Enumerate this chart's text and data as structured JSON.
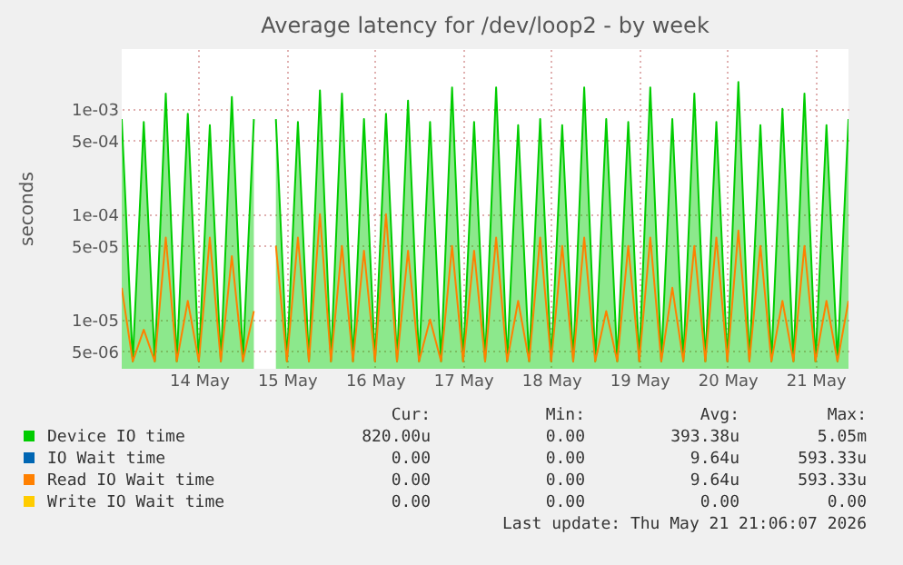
{
  "chart_data": {
    "type": "area",
    "title": "Average latency for /dev/loop2 - by week",
    "ylabel": "seconds",
    "log": true,
    "grid": true,
    "legend": "bottom",
    "xlim": [
      "2026-05-13T03:00",
      "2026-05-21T09:00"
    ],
    "xticks": [
      {
        "value": "2026-05-14",
        "label": "14 May"
      },
      {
        "value": "2026-05-15",
        "label": "15 May"
      },
      {
        "value": "2026-05-16",
        "label": "16 May"
      },
      {
        "value": "2026-05-17",
        "label": "17 May"
      },
      {
        "value": "2026-05-18",
        "label": "18 May"
      },
      {
        "value": "2026-05-19",
        "label": "19 May"
      },
      {
        "value": "2026-05-20",
        "label": "20 May"
      },
      {
        "value": "2026-05-21",
        "label": "21 May"
      }
    ],
    "ylim": [
      3.4e-06,
      0.0037
    ],
    "yticks": [
      {
        "value": 5e-06,
        "label": "5e-06"
      },
      {
        "value": 1e-05,
        "label": "1e-05"
      },
      {
        "value": 5e-05,
        "label": "5e-05"
      },
      {
        "value": 0.0001,
        "label": "1e-04"
      },
      {
        "value": 0.0005,
        "label": "5e-04"
      },
      {
        "value": 0.001,
        "label": "1e-03"
      }
    ],
    "x": [
      "2026-05-13T03:00",
      "2026-05-13T06:00",
      "2026-05-13T09:00",
      "2026-05-13T12:00",
      "2026-05-13T15:00",
      "2026-05-13T18:00",
      "2026-05-13T21:00",
      "2026-05-14T00:00",
      "2026-05-14T03:00",
      "2026-05-14T06:00",
      "2026-05-14T09:00",
      "2026-05-14T12:00",
      "2026-05-14T15:00",
      "2026-05-14T18:00",
      "2026-05-14T21:00",
      "2026-05-15T00:00",
      "2026-05-15T03:00",
      "2026-05-15T06:00",
      "2026-05-15T09:00",
      "2026-05-15T12:00",
      "2026-05-15T15:00",
      "2026-05-15T18:00",
      "2026-05-15T21:00",
      "2026-05-16T00:00",
      "2026-05-16T03:00",
      "2026-05-16T06:00",
      "2026-05-16T09:00",
      "2026-05-16T12:00",
      "2026-05-16T15:00",
      "2026-05-16T18:00",
      "2026-05-16T21:00",
      "2026-05-17T00:00",
      "2026-05-17T03:00",
      "2026-05-17T06:00",
      "2026-05-17T09:00",
      "2026-05-17T12:00",
      "2026-05-17T15:00",
      "2026-05-17T18:00",
      "2026-05-17T21:00",
      "2026-05-18T00:00",
      "2026-05-18T03:00",
      "2026-05-18T06:00",
      "2026-05-18T09:00",
      "2026-05-18T12:00",
      "2026-05-18T15:00",
      "2026-05-18T18:00",
      "2026-05-18T21:00",
      "2026-05-19T00:00",
      "2026-05-19T03:00",
      "2026-05-19T06:00",
      "2026-05-19T09:00",
      "2026-05-19T12:00",
      "2026-05-19T15:00",
      "2026-05-19T18:00",
      "2026-05-19T21:00",
      "2026-05-20T00:00",
      "2026-05-20T03:00",
      "2026-05-20T06:00",
      "2026-05-20T09:00",
      "2026-05-20T12:00",
      "2026-05-20T15:00",
      "2026-05-20T18:00",
      "2026-05-20T21:00",
      "2026-05-21T00:00",
      "2026-05-21T03:00",
      "2026-05-21T06:00",
      "2026-05-21T09:00"
    ],
    "series": [
      {
        "name": "Device IO time",
        "color": "#00cc00",
        "values": [
          0.0008,
          4e-06,
          0.00075,
          4e-06,
          0.0014,
          4e-06,
          0.0009,
          4e-06,
          0.0007,
          4e-06,
          0.0013,
          4e-06,
          0.0008,
          null,
          0.0008,
          4e-06,
          0.00075,
          4e-06,
          0.0015,
          4e-06,
          0.0014,
          4e-06,
          0.0008,
          4e-06,
          0.0009,
          4e-06,
          0.0012,
          4e-06,
          0.00075,
          4e-06,
          0.0016,
          4e-06,
          0.00075,
          4e-06,
          0.0016,
          4e-06,
          0.0007,
          4e-06,
          0.0008,
          4e-06,
          0.0007,
          4e-06,
          0.0016,
          4e-06,
          0.0008,
          4e-06,
          0.00075,
          4e-06,
          0.0016,
          4e-06,
          0.0008,
          4e-06,
          0.0014,
          4e-06,
          0.00075,
          4e-06,
          0.0018,
          4e-06,
          0.0007,
          4e-06,
          0.001,
          4e-06,
          0.0014,
          4e-06,
          0.0007,
          4e-06,
          0.0008
        ]
      },
      {
        "name": "IO Wait time",
        "color": "#0066b3",
        "values": [
          null,
          null,
          null,
          null,
          null,
          null,
          null,
          null,
          null,
          null,
          null,
          null,
          null,
          null,
          null,
          null,
          null,
          null,
          null,
          null,
          null,
          null,
          null,
          null,
          null,
          null,
          null,
          null,
          null,
          null,
          null,
          null,
          null,
          null,
          null,
          null,
          null,
          null,
          null,
          null,
          null,
          null,
          null,
          null,
          null,
          null,
          null,
          null,
          null,
          null,
          null,
          null,
          null,
          null,
          null,
          null,
          null,
          null,
          null,
          null,
          null,
          null,
          null,
          null,
          null,
          null,
          null
        ]
      },
      {
        "name": "Read IO Wait time",
        "color": "#ff8000",
        "type": "line",
        "values": [
          2e-05,
          4e-06,
          8e-06,
          4e-06,
          6e-05,
          4e-06,
          1.5e-05,
          4e-06,
          6e-05,
          4e-06,
          4e-05,
          4e-06,
          1.2e-05,
          null,
          5e-05,
          4e-06,
          6e-05,
          4e-06,
          0.0001,
          4e-06,
          5e-05,
          4e-06,
          4.5e-05,
          4e-06,
          0.0001,
          4e-06,
          4.5e-05,
          4e-06,
          1e-05,
          4e-06,
          5e-05,
          4e-06,
          4.5e-05,
          4e-06,
          6e-05,
          4e-06,
          1.5e-05,
          4e-06,
          6e-05,
          4e-06,
          5e-05,
          4e-06,
          6e-05,
          4e-06,
          1.2e-05,
          4e-06,
          5e-05,
          4e-06,
          6e-05,
          4e-06,
          2e-05,
          4e-06,
          5e-05,
          4e-06,
          6e-05,
          4e-06,
          7e-05,
          4e-06,
          5e-05,
          4e-06,
          1.5e-05,
          4e-06,
          5e-05,
          4e-06,
          1.5e-05,
          4e-06,
          1.5e-05
        ]
      },
      {
        "name": "Write IO Wait time",
        "color": "#ffcc00",
        "values": [
          null,
          null,
          null,
          null,
          null,
          null,
          null,
          null,
          null,
          null,
          null,
          null,
          null,
          null,
          null,
          null,
          null,
          null,
          null,
          null,
          null,
          null,
          null,
          null,
          null,
          null,
          null,
          null,
          null,
          null,
          null,
          null,
          null,
          null,
          null,
          null,
          null,
          null,
          null,
          null,
          null,
          null,
          null,
          null,
          null,
          null,
          null,
          null,
          null,
          null,
          null,
          null,
          null,
          null,
          null,
          null,
          null,
          null,
          null,
          null,
          null,
          null,
          null,
          null,
          null,
          null,
          null
        ]
      }
    ],
    "annotations": [
      "Cur:",
      "Min:",
      "Avg:",
      "Max:",
      "820.00u",
      "0.00",
      "393.38u",
      "5.05m",
      "0.00",
      "0.00",
      "9.64u",
      "593.33u",
      "0.00",
      "0.00",
      "9.64u",
      "593.33u",
      "0.00",
      "0.00",
      "0.00",
      "0.00",
      "Last update: Thu May 21 21:06:07 2026"
    ]
  }
}
